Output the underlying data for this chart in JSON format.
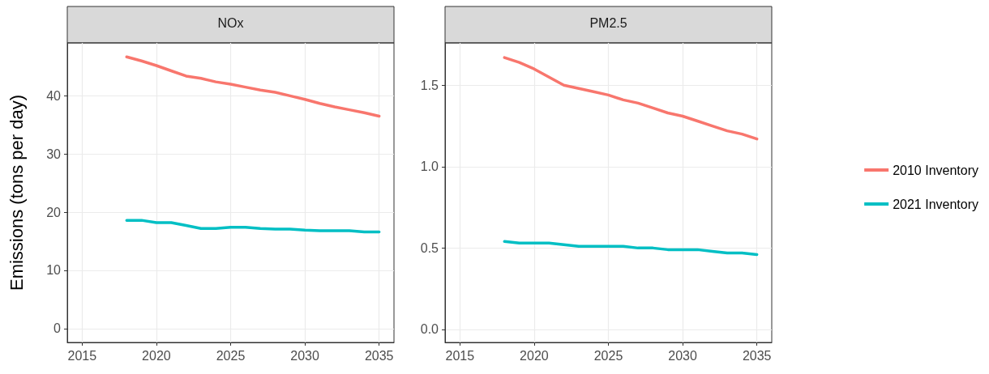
{
  "chart_data": [
    {
      "type": "line",
      "title": "NOx",
      "ylabel": "Emissions (tons per day)",
      "x": [
        2018,
        2019,
        2020,
        2021,
        2022,
        2023,
        2024,
        2025,
        2026,
        2027,
        2028,
        2029,
        2030,
        2031,
        2032,
        2033,
        2034,
        2035
      ],
      "series": [
        {
          "color": "#f8766d",
          "values": [
            46.7,
            46.0,
            45.2,
            44.3,
            43.4,
            43.0,
            42.4,
            42.0,
            41.5,
            41.0,
            40.6,
            40.0,
            39.4,
            38.7,
            38.1,
            37.6,
            37.1,
            36.5
          ]
        },
        {
          "color": "#00bfc4",
          "values": [
            18.6,
            18.6,
            18.2,
            18.2,
            17.7,
            17.2,
            17.2,
            17.4,
            17.4,
            17.2,
            17.1,
            17.1,
            16.9,
            16.8,
            16.8,
            16.8,
            16.6,
            16.6
          ]
        }
      ],
      "xlim": [
        2014,
        2036
      ],
      "xticks": [
        2015,
        2020,
        2025,
        2030,
        2035
      ],
      "ylim": [
        -2.4,
        49.1
      ],
      "yticks": [
        0,
        10,
        20,
        30,
        40
      ],
      "grid": true,
      "legend": false,
      "marker": "none",
      "line_style": "solid"
    },
    {
      "type": "line",
      "title": "PM2.5",
      "x": [
        2018,
        2019,
        2020,
        2021,
        2022,
        2023,
        2024,
        2025,
        2026,
        2027,
        2028,
        2029,
        2030,
        2031,
        2032,
        2033,
        2034,
        2035
      ],
      "series": [
        {
          "name": "2010 Inventory",
          "color": "#f8766d",
          "values": [
            1.67,
            1.64,
            1.6,
            1.55,
            1.5,
            1.48,
            1.46,
            1.44,
            1.41,
            1.39,
            1.36,
            1.33,
            1.31,
            1.28,
            1.25,
            1.22,
            1.2,
            1.17
          ]
        },
        {
          "name": "2021 Inventory",
          "color": "#00bfc4",
          "values": [
            0.54,
            0.53,
            0.53,
            0.53,
            0.52,
            0.51,
            0.51,
            0.51,
            0.51,
            0.5,
            0.5,
            0.49,
            0.49,
            0.49,
            0.48,
            0.47,
            0.47,
            0.46
          ]
        }
      ],
      "xlim": [
        2014,
        2036
      ],
      "xticks": [
        2015,
        2020,
        2025,
        2030,
        2035
      ],
      "ylim": [
        -0.08,
        1.76
      ],
      "yticks": [
        {
          "value": 0,
          "label": "0.0"
        },
        0.5,
        {
          "value": 1,
          "label": "1.0"
        },
        1.5
      ],
      "grid": true,
      "legend": "right",
      "marker": "none",
      "line_style": "solid"
    }
  ]
}
